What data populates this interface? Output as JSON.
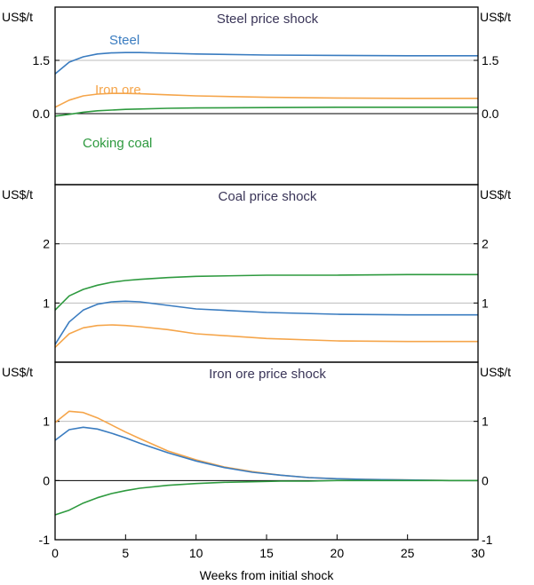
{
  "colors": {
    "steel": "#3A7CC0",
    "iron_ore": "#F5A54A",
    "coking_coal": "#2E9A3F",
    "grid": "#BDBDBD",
    "axis": "#000000",
    "title_text": "#3A3558"
  },
  "footer": {
    "xlabel": "Weeks from initial shock"
  },
  "chart_data": [
    {
      "type": "line",
      "title": "Steel price shock",
      "ylabel_left": "US$/t",
      "ylabel_right": "US$/t",
      "ylim": [
        -2,
        3
      ],
      "yticks": [
        {
          "value": 1.5,
          "label": "1.5"
        },
        {
          "value": 0.0,
          "label": "0.0"
        }
      ],
      "xlim": [
        0,
        30
      ],
      "series": [
        {
          "name": "Steel",
          "color_key": "steel",
          "x": [
            0,
            1,
            2,
            3,
            4,
            5,
            6,
            8,
            10,
            15,
            20,
            25,
            30
          ],
          "y": [
            1.12,
            1.45,
            1.6,
            1.68,
            1.71,
            1.72,
            1.72,
            1.7,
            1.68,
            1.65,
            1.64,
            1.63,
            1.63
          ]
        },
        {
          "name": "Iron ore",
          "color_key": "iron_ore",
          "x": [
            0,
            1,
            2,
            3,
            4,
            5,
            6,
            8,
            10,
            15,
            20,
            25,
            30
          ],
          "y": [
            0.18,
            0.38,
            0.5,
            0.55,
            0.57,
            0.57,
            0.56,
            0.53,
            0.5,
            0.46,
            0.44,
            0.43,
            0.43
          ]
        },
        {
          "name": "Coking coal",
          "color_key": "coking_coal",
          "x": [
            0,
            1,
            2,
            3,
            4,
            5,
            6,
            8,
            10,
            15,
            20,
            25,
            30
          ],
          "y": [
            -0.07,
            -0.02,
            0.04,
            0.08,
            0.1,
            0.12,
            0.13,
            0.15,
            0.16,
            0.17,
            0.18,
            0.18,
            0.18
          ]
        }
      ]
    },
    {
      "type": "line",
      "title": "Coal price shock",
      "ylabel_left": "US$/t",
      "ylabel_right": "US$/t",
      "ylim": [
        0,
        3
      ],
      "yticks": [
        {
          "value": 2,
          "label": "2"
        },
        {
          "value": 1,
          "label": "1"
        }
      ],
      "xlim": [
        0,
        30
      ],
      "series": [
        {
          "name": "Coking coal",
          "color_key": "coking_coal",
          "x": [
            0,
            1,
            2,
            3,
            4,
            5,
            6,
            8,
            10,
            15,
            20,
            25,
            30
          ],
          "y": [
            0.88,
            1.12,
            1.23,
            1.3,
            1.35,
            1.38,
            1.4,
            1.43,
            1.45,
            1.47,
            1.47,
            1.48,
            1.48
          ]
        },
        {
          "name": "Steel",
          "color_key": "steel",
          "x": [
            0,
            1,
            2,
            3,
            4,
            5,
            6,
            8,
            10,
            15,
            20,
            25,
            30
          ],
          "y": [
            0.3,
            0.68,
            0.88,
            0.98,
            1.02,
            1.03,
            1.02,
            0.96,
            0.9,
            0.84,
            0.81,
            0.8,
            0.8
          ]
        },
        {
          "name": "Iron ore",
          "color_key": "iron_ore",
          "x": [
            0,
            1,
            2,
            3,
            4,
            5,
            6,
            8,
            10,
            15,
            20,
            25,
            30
          ],
          "y": [
            0.25,
            0.48,
            0.58,
            0.62,
            0.63,
            0.62,
            0.6,
            0.55,
            0.48,
            0.4,
            0.36,
            0.35,
            0.35
          ]
        }
      ]
    },
    {
      "type": "line",
      "title": "Iron ore price shock",
      "ylabel_left": "US$/t",
      "ylabel_right": "US$/t",
      "ylim": [
        -1,
        2
      ],
      "yticks": [
        {
          "value": 1,
          "label": "1"
        },
        {
          "value": 0,
          "label": "0"
        },
        {
          "value": -1,
          "label": "-1"
        }
      ],
      "xlim": [
        0,
        30
      ],
      "xticks": [
        0,
        5,
        10,
        15,
        20,
        25,
        30
      ],
      "series": [
        {
          "name": "Iron ore",
          "color_key": "iron_ore",
          "x": [
            0,
            1,
            2,
            3,
            4,
            5,
            6,
            8,
            10,
            12,
            14,
            16,
            18,
            20,
            22,
            25,
            28,
            30
          ],
          "y": [
            0.98,
            1.17,
            1.15,
            1.06,
            0.94,
            0.82,
            0.71,
            0.5,
            0.35,
            0.23,
            0.15,
            0.09,
            0.05,
            0.03,
            0.02,
            0.01,
            0.0,
            0.0
          ]
        },
        {
          "name": "Steel",
          "color_key": "steel",
          "x": [
            0,
            1,
            2,
            3,
            4,
            5,
            6,
            8,
            10,
            12,
            14,
            16,
            18,
            20,
            22,
            25,
            28,
            30
          ],
          "y": [
            0.68,
            0.86,
            0.9,
            0.87,
            0.8,
            0.72,
            0.63,
            0.47,
            0.33,
            0.22,
            0.14,
            0.09,
            0.05,
            0.03,
            0.02,
            0.01,
            0.0,
            0.0
          ]
        },
        {
          "name": "Coking coal",
          "color_key": "coking_coal",
          "x": [
            0,
            1,
            2,
            3,
            4,
            5,
            6,
            8,
            10,
            12,
            14,
            16,
            18,
            20,
            22,
            25,
            28,
            30
          ],
          "y": [
            -0.58,
            -0.5,
            -0.38,
            -0.29,
            -0.22,
            -0.17,
            -0.13,
            -0.08,
            -0.05,
            -0.03,
            -0.02,
            -0.01,
            -0.01,
            0.0,
            0.0,
            0.0,
            0.0,
            0.0
          ]
        }
      ]
    }
  ]
}
